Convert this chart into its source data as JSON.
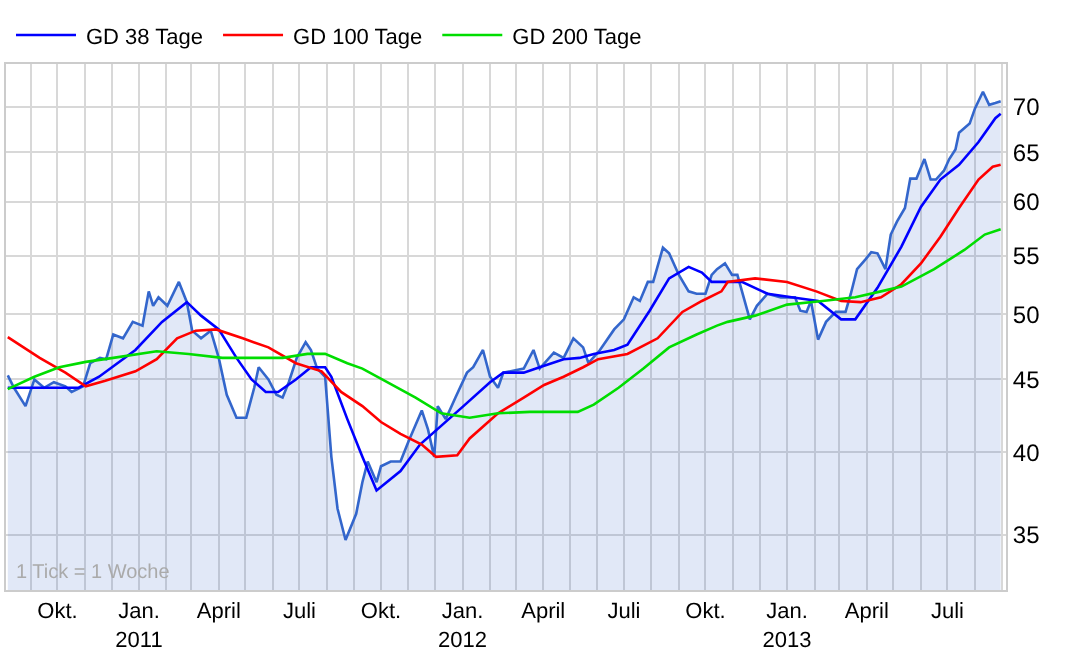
{
  "chart_data": {
    "type": "line",
    "series": [
      {
        "type": "area",
        "color": "#3366cc",
        "x": [
          "2010-08-06",
          "2010-08-13",
          "2010-08-26",
          "2010-09-05",
          "2010-09-16",
          "2010-09-27",
          "2010-10-10",
          "2010-10-17",
          "2010-10-30",
          "2010-11-07",
          "2010-11-18",
          "2010-11-25",
          "2010-12-03",
          "2010-12-14",
          "2010-12-25",
          "2011-01-05",
          "2011-01-12",
          "2011-01-17",
          "2011-01-23",
          "2011-02-02",
          "2011-02-15",
          "2011-02-24",
          "2011-03-02",
          "2011-03-12",
          "2011-03-23",
          "2011-04-01",
          "2011-04-10",
          "2011-04-21",
          "2011-05-02",
          "2011-05-11",
          "2011-05-16",
          "2011-05-27",
          "2011-06-05",
          "2011-06-12",
          "2011-06-19",
          "2011-06-28",
          "2011-07-08",
          "2011-07-14",
          "2011-07-21",
          "2011-07-30",
          "2011-08-06",
          "2011-08-13",
          "2011-08-22",
          "2011-09-03",
          "2011-09-10",
          "2011-09-16",
          "2011-09-26",
          "2011-10-01",
          "2011-10-12",
          "2011-10-23",
          "2011-11-01",
          "2011-11-16",
          "2011-11-23",
          "2011-11-30",
          "2011-12-04",
          "2011-12-13",
          "2011-12-24",
          "2012-01-06",
          "2012-01-13",
          "2012-01-24",
          "2012-02-01",
          "2012-02-10",
          "2012-02-16",
          "2012-03-10",
          "2012-03-21",
          "2012-03-28",
          "2012-04-13",
          "2012-04-24",
          "2012-05-05",
          "2012-05-16",
          "2012-05-22",
          "2012-06-04",
          "2012-06-20",
          "2012-07-01",
          "2012-07-12",
          "2012-07-19",
          "2012-07-28",
          "2012-08-03",
          "2012-08-14",
          "2012-08-21",
          "2012-09-01",
          "2012-09-12",
          "2012-09-21",
          "2012-10-01",
          "2012-10-08",
          "2012-10-14",
          "2012-10-23",
          "2012-10-31",
          "2012-11-06",
          "2012-11-20",
          "2012-11-28",
          "2012-12-10",
          "2012-12-25",
          "2013-01-10",
          "2013-01-16",
          "2013-01-23",
          "2013-01-28",
          "2013-02-05",
          "2013-02-14",
          "2013-02-25",
          "2013-03-08",
          "2013-03-14",
          "2013-03-21",
          "2013-03-31",
          "2013-04-06",
          "2013-04-13",
          "2013-04-22",
          "2013-04-28",
          "2013-05-05",
          "2013-05-14",
          "2013-05-20",
          "2013-05-27",
          "2013-06-05",
          "2013-06-12",
          "2013-06-18",
          "2013-06-27",
          "2013-07-03",
          "2013-07-10",
          "2013-07-14",
          "2013-07-26",
          "2013-08-01",
          "2013-08-10",
          "2013-08-17",
          "2013-08-24",
          "2013-08-30"
        ],
        "values": [
          45.3,
          44.4,
          43.1,
          45.0,
          44.4,
          44.8,
          44.5,
          44.1,
          44.5,
          46.2,
          46.6,
          46.5,
          48.4,
          48.1,
          49.4,
          49.1,
          51.9,
          50.7,
          51.4,
          50.7,
          52.7,
          51.0,
          48.7,
          48.1,
          48.7,
          46.6,
          43.9,
          42.3,
          42.3,
          44.4,
          45.9,
          45.0,
          43.9,
          43.7,
          44.8,
          46.6,
          47.8,
          47.2,
          45.8,
          45.2,
          39.7,
          36.5,
          34.7,
          36.2,
          38.1,
          39.4,
          38.1,
          39.1,
          39.4,
          39.4,
          40.7,
          42.8,
          41.5,
          39.7,
          43.1,
          42.2,
          43.7,
          45.5,
          45.9,
          47.2,
          45.2,
          44.4,
          45.5,
          45.8,
          47.2,
          45.8,
          47.0,
          46.6,
          48.1,
          47.4,
          46.2,
          47.2,
          48.8,
          49.6,
          51.4,
          51.1,
          52.7,
          52.7,
          55.7,
          55.2,
          53.3,
          51.9,
          51.7,
          51.7,
          53.3,
          53.8,
          54.3,
          53.3,
          53.3,
          49.6,
          50.7,
          51.7,
          51.4,
          51.4,
          50.3,
          50.2,
          51.1,
          48.0,
          49.4,
          50.2,
          50.2,
          51.7,
          53.8,
          54.7,
          55.3,
          55.2,
          53.8,
          56.9,
          58.1,
          59.4,
          62.3,
          62.3,
          64.3,
          62.2,
          62.2,
          63.1,
          64.3,
          65.3,
          67.1,
          68.1,
          69.8,
          71.7,
          70.2,
          70.4,
          70.6
        ]
      },
      {
        "name": "GD 38 Tage",
        "color": "#0000ff",
        "x": [
          "2010-08-06",
          "2010-10-25",
          "2010-11-17",
          "2010-12-28",
          "2011-01-27",
          "2011-02-24",
          "2011-03-12",
          "2011-04-01",
          "2011-04-21",
          "2011-05-08",
          "2011-05-24",
          "2011-06-07",
          "2011-06-27",
          "2011-07-14",
          "2011-07-30",
          "2011-08-06",
          "2011-08-24",
          "2011-09-10",
          "2011-09-26",
          "2011-10-23",
          "2011-11-14",
          "2012-01-02",
          "2012-02-01",
          "2012-02-16",
          "2012-03-10",
          "2012-03-28",
          "2012-04-24",
          "2012-05-12",
          "2012-05-28",
          "2012-06-20",
          "2012-07-05",
          "2012-07-30",
          "2012-08-21",
          "2012-09-12",
          "2012-09-27",
          "2012-10-08",
          "2012-11-11",
          "2012-12-10",
          "2013-01-16",
          "2013-02-05",
          "2013-03-03",
          "2013-03-19",
          "2013-04-13",
          "2013-05-10",
          "2013-06-01",
          "2013-06-23",
          "2013-07-14",
          "2013-08-05",
          "2013-08-24",
          "2013-08-30"
        ],
        "values": [
          44.4,
          44.4,
          45.2,
          47.2,
          49.4,
          51.0,
          49.9,
          48.8,
          46.6,
          45.0,
          44.1,
          44.1,
          45.0,
          45.9,
          45.9,
          45.2,
          42.2,
          39.7,
          37.6,
          38.8,
          40.5,
          43.1,
          44.8,
          45.5,
          45.5,
          45.9,
          46.5,
          46.6,
          46.9,
          47.2,
          47.6,
          50.3,
          53.0,
          54.0,
          53.5,
          52.7,
          52.7,
          51.7,
          51.3,
          51.1,
          49.6,
          49.6,
          52.2,
          55.8,
          59.5,
          62.2,
          63.7,
          66.1,
          68.7,
          69.2
        ]
      },
      {
        "name": "GD 100 Tage",
        "color": "#ff0000",
        "x": [
          "2010-08-06",
          "2010-09-11",
          "2010-10-10",
          "2010-11-02",
          "2010-11-24",
          "2010-12-28",
          "2011-01-21",
          "2011-02-13",
          "2011-03-06",
          "2011-03-29",
          "2011-04-28",
          "2011-05-27",
          "2011-06-27",
          "2011-07-26",
          "2011-08-17",
          "2011-09-10",
          "2011-10-01",
          "2011-10-23",
          "2011-11-16",
          "2011-12-02",
          "2011-12-26",
          "2012-01-09",
          "2012-02-10",
          "2012-03-10",
          "2012-04-02",
          "2012-04-24",
          "2012-05-16",
          "2012-06-02",
          "2012-07-05",
          "2012-08-08",
          "2012-09-05",
          "2012-09-27",
          "2012-10-19",
          "2012-10-26",
          "2012-11-26",
          "2013-01-01",
          "2013-02-03",
          "2013-03-03",
          "2013-03-25",
          "2013-04-17",
          "2013-05-10",
          "2013-06-01",
          "2013-06-23",
          "2013-07-14",
          "2013-08-05",
          "2013-08-21",
          "2013-08-30"
        ],
        "values": [
          48.2,
          46.6,
          45.5,
          44.5,
          44.9,
          45.6,
          46.5,
          48.1,
          48.7,
          48.8,
          48.1,
          47.4,
          46.2,
          45.6,
          44.1,
          43.1,
          42.0,
          41.2,
          40.5,
          39.7,
          39.8,
          40.9,
          42.6,
          43.7,
          44.6,
          45.2,
          45.9,
          46.5,
          46.9,
          48.1,
          50.2,
          51.1,
          51.9,
          52.7,
          53.0,
          52.7,
          51.9,
          51.1,
          51.0,
          51.4,
          52.5,
          54.3,
          56.7,
          59.4,
          62.2,
          63.5,
          63.7
        ]
      },
      {
        "name": "GD 200 Tage",
        "color": "#00dd00",
        "x": [
          "2010-08-06",
          "2010-09-05",
          "2010-10-03",
          "2010-11-02",
          "2010-12-03",
          "2011-01-21",
          "2011-02-26",
          "2011-04-05",
          "2011-06-12",
          "2011-07-10",
          "2011-07-30",
          "2011-08-24",
          "2011-09-10",
          "2011-10-08",
          "2011-11-09",
          "2011-12-08",
          "2012-01-09",
          "2012-02-10",
          "2012-03-17",
          "2012-05-10",
          "2012-05-28",
          "2012-06-25",
          "2012-07-23",
          "2012-08-21",
          "2012-09-21",
          "2012-10-14",
          "2012-10-26",
          "2012-11-26",
          "2013-01-01",
          "2013-02-10",
          "2013-03-19",
          "2013-04-17",
          "2013-05-10",
          "2013-06-16",
          "2013-07-20",
          "2013-08-12",
          "2013-08-30"
        ],
        "values": [
          44.3,
          45.2,
          45.9,
          46.3,
          46.6,
          47.1,
          46.9,
          46.6,
          46.6,
          46.9,
          46.9,
          46.2,
          45.8,
          44.8,
          43.7,
          42.6,
          42.3,
          42.6,
          42.7,
          42.7,
          43.2,
          44.4,
          45.8,
          47.4,
          48.4,
          49.1,
          49.4,
          49.9,
          50.8,
          51.1,
          51.4,
          51.9,
          52.3,
          53.8,
          55.5,
          56.9,
          57.4
        ]
      }
    ],
    "xlim": [
      "2010-08-04",
      "2013-09-05"
    ],
    "xticks": [
      {
        "value": "2010-09-01",
        "label": null
      },
      {
        "value": "2010-10-01",
        "label": "Okt."
      },
      {
        "value": "2010-11-01",
        "label": null
      },
      {
        "value": "2010-12-01",
        "label": null
      },
      {
        "value": "2011-01-01",
        "label": "Jan.\n2011"
      },
      {
        "value": "2011-02-01",
        "label": null
      },
      {
        "value": "2011-03-01",
        "label": null
      },
      {
        "value": "2011-04-01",
        "label": "April"
      },
      {
        "value": "2011-05-01",
        "label": null
      },
      {
        "value": "2011-06-01",
        "label": null
      },
      {
        "value": "2011-07-01",
        "label": "Juli"
      },
      {
        "value": "2011-08-01",
        "label": null
      },
      {
        "value": "2011-09-01",
        "label": null
      },
      {
        "value": "2011-10-01",
        "label": "Okt."
      },
      {
        "value": "2011-11-01",
        "label": null
      },
      {
        "value": "2011-12-01",
        "label": null
      },
      {
        "value": "2012-01-01",
        "label": "Jan.\n2012"
      },
      {
        "value": "2012-02-01",
        "label": null
      },
      {
        "value": "2012-03-01",
        "label": null
      },
      {
        "value": "2012-04-01",
        "label": "April"
      },
      {
        "value": "2012-05-01",
        "label": null
      },
      {
        "value": "2012-06-01",
        "label": null
      },
      {
        "value": "2012-07-01",
        "label": "Juli"
      },
      {
        "value": "2012-08-01",
        "label": null
      },
      {
        "value": "2012-09-01",
        "label": null
      },
      {
        "value": "2012-10-01",
        "label": "Okt."
      },
      {
        "value": "2012-11-01",
        "label": null
      },
      {
        "value": "2012-12-01",
        "label": null
      },
      {
        "value": "2013-01-01",
        "label": "Jan.\n2013"
      },
      {
        "value": "2013-02-01",
        "label": null
      },
      {
        "value": "2013-03-01",
        "label": null
      },
      {
        "value": "2013-04-01",
        "label": "April"
      },
      {
        "value": "2013-05-01",
        "label": null
      },
      {
        "value": "2013-06-01",
        "label": null
      },
      {
        "value": "2013-07-01",
        "label": "Juli"
      },
      {
        "value": "2013-08-01",
        "label": null
      },
      {
        "value": "2013-09-01",
        "label": null
      }
    ],
    "ylim": [
      32,
      75
    ],
    "yticks": [
      35,
      40,
      45,
      50,
      55,
      60,
      65,
      70
    ],
    "log": true,
    "grid": true,
    "legend": "top",
    "annotations": [
      "1 Tick = 1 Woche"
    ]
  }
}
